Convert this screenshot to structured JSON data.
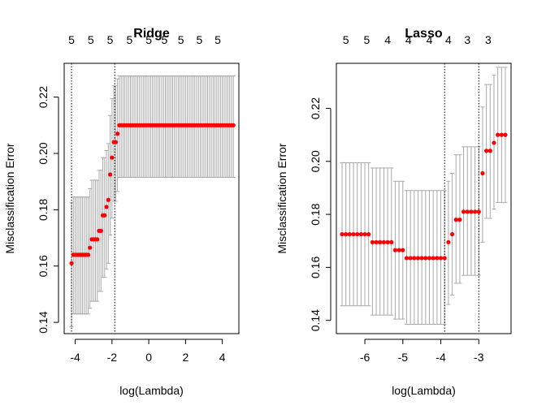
{
  "colors": {
    "point": "#ff0000",
    "errorbar": "#a9a9a9",
    "axis": "#000000"
  },
  "chart_data": [
    {
      "type": "scatter",
      "title": "Ridge",
      "xlabel": "log(Lambda)",
      "ylabel": "Misclassification Error",
      "xlim": [
        -4.6,
        4.9
      ],
      "ylim": [
        0.136,
        0.232
      ],
      "xticks": [
        -4,
        -2,
        0,
        2,
        4
      ],
      "xtick_labels": [
        "-4",
        "-2",
        "0",
        "2",
        "4"
      ],
      "yticks": [
        0.14,
        0.16,
        0.18,
        0.2,
        0.22
      ],
      "ytick_labels": [
        "0.14",
        "0.16",
        "0.18",
        "0.20",
        "0.22"
      ],
      "top_axis": {
        "positions": [
          -4.2,
          -3.15,
          -2.1,
          -1.05,
          0.0,
          0.85,
          1.75,
          2.75,
          3.75
        ],
        "labels": [
          "5",
          "5",
          "5",
          "5",
          "5",
          "5",
          "5",
          "5",
          "5"
        ]
      },
      "vlines": [
        -4.2,
        -1.85
      ],
      "x": [
        -4.2,
        -4.1,
        -4.0,
        -3.9,
        -3.8,
        -3.7,
        -3.6,
        -3.5,
        -3.4,
        -3.3,
        -3.2,
        -3.1,
        -3.0,
        -2.9,
        -2.8,
        -2.7,
        -2.6,
        -2.5,
        -2.4,
        -2.3,
        -2.2,
        -2.1,
        -2.0,
        -1.9,
        -1.8,
        -1.7,
        -1.6,
        -1.5,
        -1.4,
        -1.3,
        -1.2,
        -1.1,
        -1.0,
        -0.9,
        -0.8,
        -0.7,
        -0.6,
        -0.5,
        -0.4,
        -0.3,
        -0.2,
        -0.1,
        0.0,
        0.1,
        0.2,
        0.3,
        0.4,
        0.5,
        0.6,
        0.7,
        0.8,
        0.9,
        1.0,
        1.1,
        1.2,
        1.3,
        1.4,
        1.5,
        1.6,
        1.7,
        1.8,
        1.9,
        2.0,
        2.1,
        2.2,
        2.3,
        2.4,
        2.5,
        2.6,
        2.7,
        2.8,
        2.9,
        3.0,
        3.1,
        3.2,
        3.3,
        3.4,
        3.5,
        3.6,
        3.7,
        3.8,
        3.9,
        4.0,
        4.1,
        4.2,
        4.3,
        4.4,
        4.5,
        4.6
      ],
      "y": [
        0.161,
        0.164,
        0.164,
        0.164,
        0.164,
        0.164,
        0.164,
        0.164,
        0.164,
        0.164,
        0.1665,
        0.1695,
        0.1695,
        0.1695,
        0.1695,
        0.1725,
        0.1725,
        0.178,
        0.178,
        0.181,
        0.1835,
        0.1925,
        0.1985,
        0.204,
        0.204,
        0.207,
        0.21,
        0.21,
        0.21,
        0.21,
        0.21,
        0.21,
        0.21,
        0.21,
        0.21,
        0.21,
        0.21,
        0.21,
        0.21,
        0.21,
        0.21,
        0.21,
        0.21,
        0.21,
        0.21,
        0.21,
        0.21,
        0.21,
        0.21,
        0.21,
        0.21,
        0.21,
        0.21,
        0.21,
        0.21,
        0.21,
        0.21,
        0.21,
        0.21,
        0.21,
        0.21,
        0.21,
        0.21,
        0.21,
        0.21,
        0.21,
        0.21,
        0.21,
        0.21,
        0.21,
        0.21,
        0.21,
        0.21,
        0.21,
        0.21,
        0.21,
        0.21,
        0.21,
        0.21,
        0.21,
        0.21,
        0.21,
        0.21,
        0.21,
        0.21,
        0.21,
        0.21,
        0.21,
        0.21
      ],
      "error_low": [
        0.1385,
        0.143,
        0.143,
        0.143,
        0.143,
        0.143,
        0.143,
        0.143,
        0.143,
        0.143,
        0.145,
        0.1475,
        0.1475,
        0.1475,
        0.1475,
        0.151,
        0.151,
        0.156,
        0.156,
        0.159,
        0.161,
        0.171,
        0.177,
        0.183,
        0.183,
        0.1865,
        0.1915,
        0.1915,
        0.1915,
        0.1915,
        0.1915,
        0.1915,
        0.1915,
        0.1915,
        0.1915,
        0.1915,
        0.1915,
        0.1915,
        0.1915,
        0.1915,
        0.1915,
        0.1915,
        0.1915,
        0.1915,
        0.1915,
        0.1915,
        0.1915,
        0.1915,
        0.1915,
        0.1915,
        0.1915,
        0.1915,
        0.1915,
        0.1915,
        0.1915,
        0.1915,
        0.1915,
        0.1915,
        0.1915,
        0.1915,
        0.1915,
        0.1915,
        0.1915,
        0.1915,
        0.1915,
        0.1915,
        0.1915,
        0.1915,
        0.1915,
        0.1915,
        0.1915,
        0.1915,
        0.1915,
        0.1915,
        0.1915,
        0.1915,
        0.1915,
        0.1915,
        0.1915,
        0.1915,
        0.1915,
        0.1915,
        0.1915,
        0.1915,
        0.1915,
        0.1915,
        0.1915,
        0.1915,
        0.1915
      ],
      "error_high": [
        0.1825,
        0.1845,
        0.1845,
        0.1845,
        0.1845,
        0.1845,
        0.1845,
        0.1845,
        0.1845,
        0.1845,
        0.1875,
        0.1905,
        0.1905,
        0.1905,
        0.1905,
        0.194,
        0.194,
        0.1985,
        0.1985,
        0.201,
        0.2035,
        0.2135,
        0.2195,
        0.224,
        0.224,
        0.2265,
        0.2275,
        0.2275,
        0.2275,
        0.2275,
        0.2275,
        0.2275,
        0.2275,
        0.2275,
        0.2275,
        0.2275,
        0.2275,
        0.2275,
        0.2275,
        0.2275,
        0.2275,
        0.2275,
        0.2275,
        0.2275,
        0.2275,
        0.2275,
        0.2275,
        0.2275,
        0.2275,
        0.2275,
        0.2275,
        0.2275,
        0.2275,
        0.2275,
        0.2275,
        0.2275,
        0.2275,
        0.2275,
        0.2275,
        0.2275,
        0.2275,
        0.2275,
        0.2275,
        0.2275,
        0.2275,
        0.2275,
        0.2275,
        0.2275,
        0.2275,
        0.2275,
        0.2275,
        0.2275,
        0.2275,
        0.2275,
        0.2275,
        0.2275,
        0.2275,
        0.2275,
        0.2275,
        0.2275,
        0.2275,
        0.2275,
        0.2275,
        0.2275,
        0.2275,
        0.2275,
        0.2275,
        0.2275,
        0.2275
      ]
    },
    {
      "type": "scatter",
      "title": "Lasso",
      "xlabel": "log(Lambda)",
      "ylabel": "Misclassification Error",
      "xlim": [
        -6.75,
        -2.15
      ],
      "ylim": [
        0.135,
        0.237
      ],
      "xticks": [
        -6,
        -5,
        -4,
        -3
      ],
      "xtick_labels": [
        "-6",
        "-5",
        "-4",
        "-3"
      ],
      "yticks": [
        0.14,
        0.16,
        0.18,
        0.2,
        0.22
      ],
      "ytick_labels": [
        "0.14",
        "0.16",
        "0.18",
        "0.20",
        "0.22"
      ],
      "top_axis": {
        "positions": [
          -6.5,
          -5.95,
          -5.4,
          -4.85,
          -4.3,
          -3.8,
          -3.3,
          -2.75
        ],
        "labels": [
          "5",
          "5",
          "4",
          "4",
          "4",
          "4",
          "3",
          "3"
        ]
      },
      "vlines": [
        -3.9,
        -3.0
      ],
      "x": [
        -6.6,
        -6.5,
        -6.4,
        -6.3,
        -6.2,
        -6.1,
        -6.0,
        -5.9,
        -5.8,
        -5.7,
        -5.6,
        -5.5,
        -5.4,
        -5.3,
        -5.2,
        -5.1,
        -5.0,
        -4.9,
        -4.8,
        -4.7,
        -4.6,
        -4.5,
        -4.4,
        -4.3,
        -4.2,
        -4.1,
        -4.0,
        -3.9,
        -3.8,
        -3.7,
        -3.6,
        -3.5,
        -3.4,
        -3.3,
        -3.2,
        -3.1,
        -3.0,
        -2.9,
        -2.8,
        -2.7,
        -2.6,
        -2.5,
        -2.4,
        -2.3
      ],
      "y": [
        0.1725,
        0.1725,
        0.1725,
        0.1725,
        0.1725,
        0.1725,
        0.1725,
        0.1725,
        0.1695,
        0.1695,
        0.1695,
        0.1695,
        0.1695,
        0.1695,
        0.1665,
        0.1665,
        0.1665,
        0.1635,
        0.1635,
        0.1635,
        0.1635,
        0.1635,
        0.1635,
        0.1635,
        0.1635,
        0.1635,
        0.1635,
        0.1635,
        0.1695,
        0.1725,
        0.178,
        0.178,
        0.181,
        0.181,
        0.181,
        0.181,
        0.181,
        0.1955,
        0.204,
        0.204,
        0.207,
        0.21,
        0.21,
        0.21
      ],
      "error_low": [
        0.1455,
        0.1455,
        0.1455,
        0.1455,
        0.1455,
        0.1455,
        0.1455,
        0.1455,
        0.142,
        0.142,
        0.142,
        0.142,
        0.142,
        0.142,
        0.1405,
        0.1405,
        0.1405,
        0.1385,
        0.1385,
        0.1385,
        0.1385,
        0.1385,
        0.1385,
        0.1385,
        0.1385,
        0.1385,
        0.1385,
        0.1385,
        0.146,
        0.1495,
        0.154,
        0.154,
        0.157,
        0.157,
        0.157,
        0.157,
        0.157,
        0.1695,
        0.1785,
        0.1785,
        0.182,
        0.1845,
        0.1845,
        0.1845
      ],
      "error_high": [
        0.1995,
        0.1995,
        0.1995,
        0.1995,
        0.1995,
        0.1995,
        0.1995,
        0.1995,
        0.1975,
        0.1975,
        0.1975,
        0.1975,
        0.1975,
        0.1975,
        0.1925,
        0.1925,
        0.1925,
        0.189,
        0.189,
        0.189,
        0.189,
        0.189,
        0.189,
        0.189,
        0.189,
        0.189,
        0.189,
        0.189,
        0.1925,
        0.1955,
        0.2025,
        0.2025,
        0.2055,
        0.2055,
        0.2055,
        0.2055,
        0.2055,
        0.2205,
        0.229,
        0.229,
        0.2325,
        0.2355,
        0.2355,
        0.2355
      ]
    }
  ]
}
